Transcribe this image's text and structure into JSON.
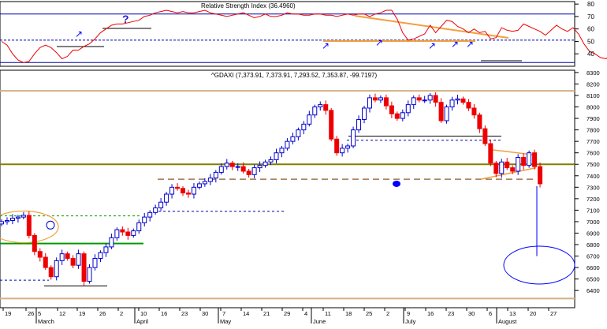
{
  "colors": {
    "background": "#ffffff",
    "frame": "#000000",
    "up_candle": "#0000cc",
    "down_candle": "#ee0000",
    "rsi_line": "#ee0000",
    "rsi_band": "#0000aa",
    "trend_orange": "#f0a040",
    "hline_olive": "#808000",
    "hline_green": "#009900",
    "hline_tan": "#d4b080",
    "dash_blue": "#0000aa",
    "dash_brown": "#8b5a2b",
    "dash_green": "#009900",
    "marker_blue": "#0000ff",
    "ellipse_blue": "#0000ff"
  },
  "chart_data": [
    {
      "type": "line",
      "title": "Relative Strength Index (36.4960)",
      "y_ticks": [
        40,
        50,
        60,
        70,
        80
      ],
      "ylim": [
        30,
        82
      ],
      "bands": [
        72,
        51,
        33
      ],
      "x_axis": "shared daily dates, 19 Feb to end of Aug",
      "rsi_values": [
        50,
        47,
        40,
        35,
        33,
        34,
        40,
        45,
        47,
        45,
        41,
        36,
        38,
        43,
        43,
        46,
        48,
        52,
        57,
        60,
        63,
        64,
        64,
        65,
        66,
        67,
        70,
        71,
        73,
        74,
        75,
        74,
        73,
        74,
        73,
        73,
        74,
        75,
        73,
        72,
        71,
        70,
        71,
        72,
        73,
        71,
        69,
        70,
        72,
        70,
        70,
        71,
        73,
        72,
        72,
        71,
        71,
        72,
        72,
        71,
        71,
        70,
        71,
        72,
        71,
        72,
        72,
        70,
        72,
        73,
        75,
        75,
        68,
        57,
        51,
        52,
        54,
        56,
        63,
        57,
        62,
        67,
        66,
        62,
        60,
        57,
        60,
        57,
        58,
        52,
        53,
        61,
        59,
        58,
        59,
        64,
        62,
        60,
        58,
        55,
        59,
        63,
        60,
        58,
        61,
        56,
        48,
        42,
        40,
        37,
        36,
        40,
        39,
        41,
        43,
        38,
        39,
        42,
        36
      ],
      "annotations": [
        "?"
      ]
    },
    {
      "type": "candlestick",
      "title": "^GDAXI (7,373.91, 7,373.91, 7,293.52, 7,353.87, -99.7197)",
      "y_ticks": [
        6400,
        6500,
        6600,
        6700,
        6800,
        6900,
        7000,
        7100,
        7200,
        7300,
        7400,
        7500,
        7600,
        7700,
        7800,
        7900,
        8000,
        8100,
        8200,
        8300
      ],
      "ylim": [
        6250,
        8320
      ],
      "x_tick_labels": [
        "19",
        "26",
        "5",
        "12",
        "19",
        "26",
        "2",
        "10",
        "16",
        "23",
        "30",
        "7",
        "14",
        "21",
        "29",
        "4",
        "11",
        "18",
        "25",
        "2",
        "9",
        "16",
        "23",
        "30",
        "6",
        "13",
        "20",
        "27"
      ],
      "month_labels": [
        "March",
        "April",
        "May",
        "June",
        "July",
        "August"
      ],
      "closes": [
        7000,
        7010,
        7030,
        7040,
        7055,
        6880,
        6740,
        6690,
        6600,
        6520,
        6660,
        6720,
        6680,
        6620,
        6720,
        6480,
        6600,
        6680,
        6730,
        6780,
        6860,
        6930,
        6910,
        6880,
        6920,
        6990,
        7040,
        7080,
        7120,
        7170,
        7240,
        7300,
        7290,
        7250,
        7240,
        7300,
        7330,
        7350,
        7380,
        7430,
        7480,
        7510,
        7480,
        7480,
        7440,
        7410,
        7470,
        7490,
        7520,
        7540,
        7600,
        7640,
        7700,
        7740,
        7800,
        7850,
        7930,
        8000,
        8020,
        7970,
        7720,
        7600,
        7640,
        7660,
        7800,
        7890,
        7990,
        8080,
        8060,
        8080,
        8010,
        7940,
        7900,
        7950,
        8020,
        8080,
        8060,
        8060,
        8100,
        8040,
        7880,
        8000,
        8060,
        8070,
        8040,
        7990,
        7930,
        7810,
        7680,
        7510,
        7420,
        7520,
        7470,
        7440,
        7560,
        7490,
        7600,
        7480,
        7330
      ],
      "horizontal_levels": [
        8140,
        7500,
        7370,
        7050,
        6810,
        6330
      ],
      "annotations": [
        "?"
      ]
    }
  ]
}
